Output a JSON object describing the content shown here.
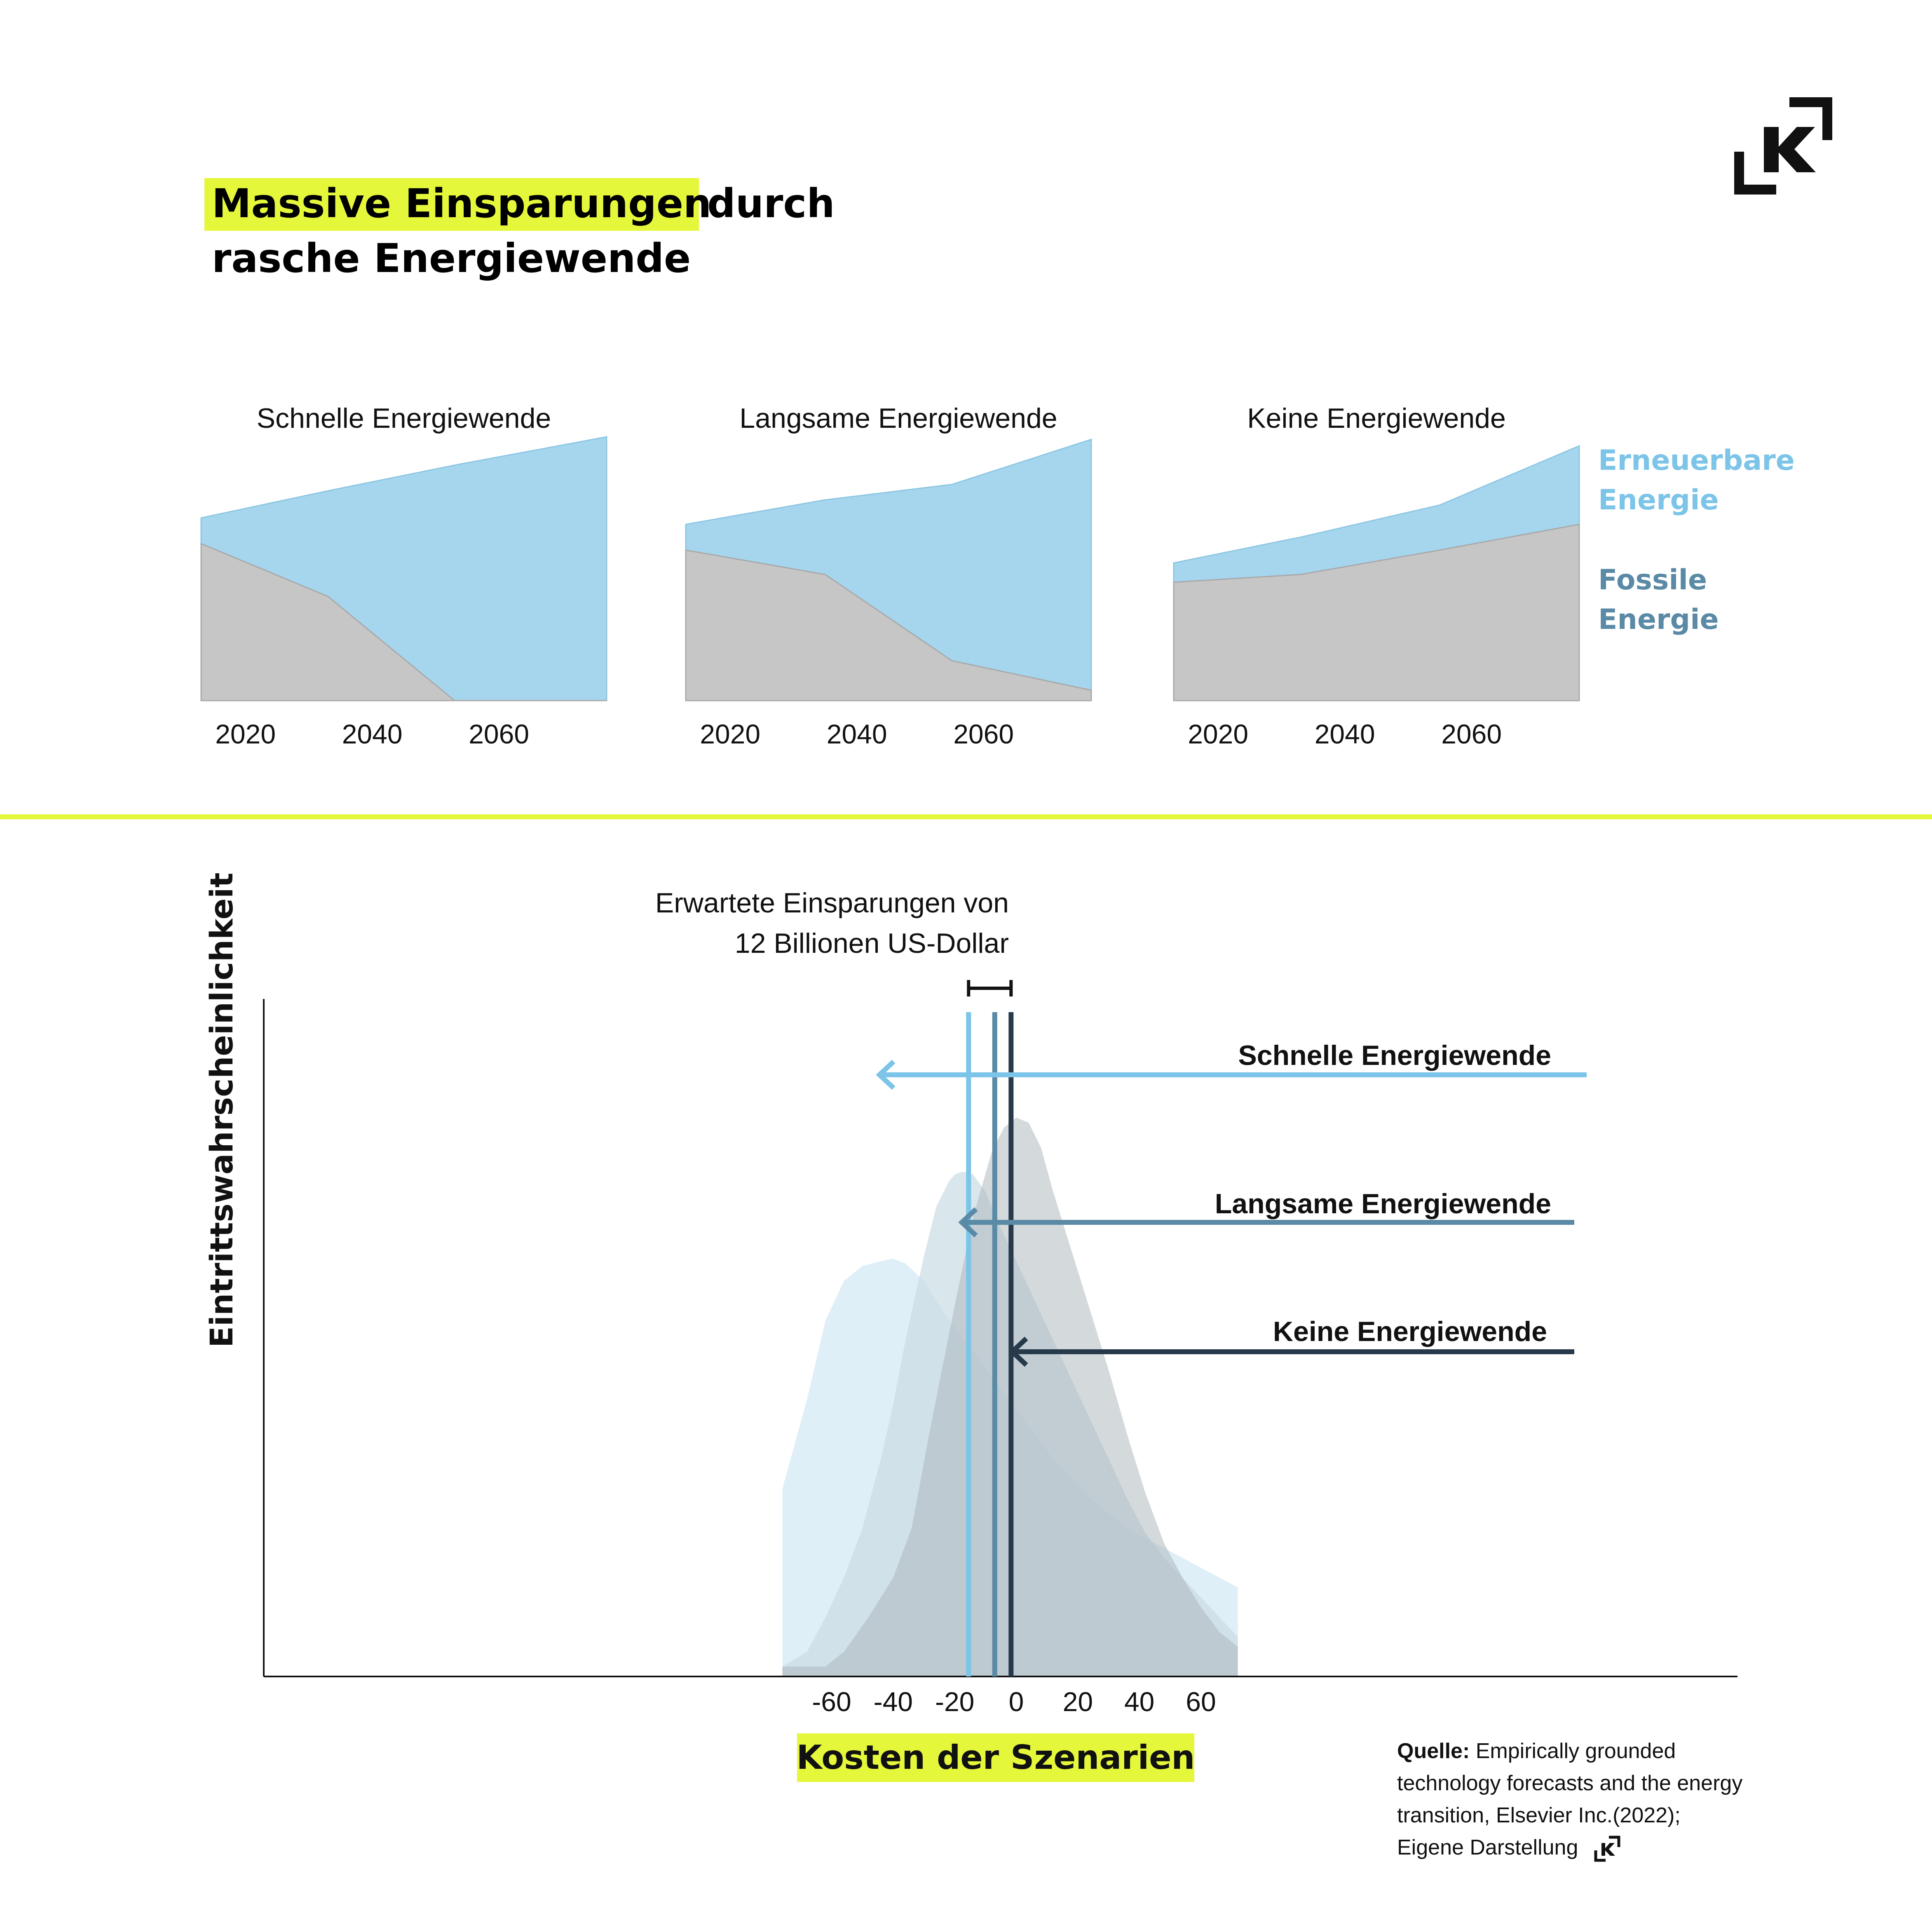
{
  "title": {
    "highlight": "Massive Einsparungen",
    "rest_line1": "durch",
    "line2": "rasche Energiewende"
  },
  "colors": {
    "highlight": "#e4f73a",
    "renewable": "#a6d6ee",
    "fossil": "#c6c6c6",
    "renewable_text": "#7cc4e8",
    "fossil_text": "#5a8aa6",
    "schnell": "#7cc4e8",
    "langsam": "#5a8aa6",
    "keine": "#263a4b",
    "divider": "#e4f73a"
  },
  "legend": {
    "renewable_line1": "Erneuerbare",
    "renewable_line2": "Energie",
    "fossil_line1": "Fossile",
    "fossil_line2": "Energie"
  },
  "annotation": {
    "line1": "Erwartete Einsparungen von",
    "line2": "12 Billionen US-Dollar"
  },
  "source": {
    "label": "Quelle:",
    "line1": "Empirically grounded",
    "line2": "technology forecasts and the energy",
    "line3": "transition, Elsevier Inc.(2022);",
    "line4": "Eigene Darstellung"
  },
  "logo": {
    "icon": "k-logo-icon"
  },
  "chart_data": [
    {
      "type": "area",
      "title": "Schnelle Energiewende",
      "x": [
        2013,
        2033,
        2053,
        2077
      ],
      "series": [
        {
          "name": "Fossile Energie",
          "values": [
            122,
            81,
            0,
            0
          ]
        },
        {
          "name": "Erneuerbare Energie",
          "values": [
            142,
            163,
            183,
            205
          ]
        }
      ],
      "x_ticks": [
        "2020",
        "2040",
        "2060"
      ],
      "tick_values": [
        2020,
        2040,
        2060
      ],
      "xlim": [
        2013,
        2077
      ],
      "ylim": [
        0,
        205
      ]
    },
    {
      "type": "area",
      "title": "Langsame Energiewende",
      "x": [
        2013,
        2035,
        2055,
        2077
      ],
      "series": [
        {
          "name": "Fossile Energie",
          "values": [
            117,
            98,
            31,
            8
          ]
        },
        {
          "name": "Erneuerbare Energie",
          "values": [
            137,
            156,
            168,
            203
          ]
        }
      ],
      "x_ticks": [
        "2020",
        "2040",
        "2060"
      ],
      "tick_values": [
        2020,
        2040,
        2060
      ],
      "xlim": [
        2013,
        2077
      ],
      "ylim": [
        0,
        205
      ]
    },
    {
      "type": "area",
      "title": "Keine Energiewende",
      "x": [
        2013,
        2033,
        2055,
        2077
      ],
      "series": [
        {
          "name": "Fossile Energie",
          "values": [
            92,
            98,
            117,
            137
          ]
        },
        {
          "name": "Erneuerbare Energie",
          "values": [
            107,
            127,
            152,
            198
          ]
        }
      ],
      "x_ticks": [
        "2020",
        "2040",
        "2060"
      ],
      "tick_values": [
        2020,
        2040,
        2060
      ],
      "xlim": [
        2013,
        2077
      ],
      "ylim": [
        0,
        205
      ]
    },
    {
      "type": "area",
      "title": "",
      "xlabel": "Kosten der Szenarien",
      "ylabel": "Eintrittswahrscheinlichkeit",
      "xlim": [
        -76,
        78
      ],
      "ylim": [
        0,
        1.2
      ],
      "x_ticks": [
        -60,
        -40,
        -20,
        0,
        20,
        40,
        60
      ],
      "series": [
        {
          "name": "Schnelle Energiewende",
          "x": [
            -76,
            -68,
            -62,
            -56,
            -50,
            -44,
            -40,
            -36,
            -30,
            -24,
            -18,
            -12,
            -6,
            0,
            6,
            12,
            18,
            24,
            30,
            36,
            42,
            48,
            54,
            60,
            66,
            72
          ],
          "values": [
            0.38,
            0.56,
            0.72,
            0.8,
            0.83,
            0.84,
            0.845,
            0.835,
            0.8,
            0.74,
            0.69,
            0.64,
            0.59,
            0.54,
            0.49,
            0.44,
            0.4,
            0.36,
            0.33,
            0.3,
            0.28,
            0.26,
            0.24,
            0.22,
            0.2,
            0.18
          ]
        },
        {
          "name": "Langsame Energiewende",
          "x": [
            -76,
            -68,
            -62,
            -56,
            -50,
            -44,
            -40,
            -36,
            -30,
            -26,
            -22,
            -20,
            -18,
            -16,
            -14,
            -10,
            -6,
            0,
            6,
            12,
            18,
            24,
            30,
            36,
            42,
            48,
            54,
            60,
            66,
            72
          ],
          "values": [
            0.02,
            0.05,
            0.12,
            0.2,
            0.3,
            0.44,
            0.55,
            0.68,
            0.85,
            0.95,
            1.0,
            1.015,
            1.02,
            1.02,
            1.015,
            0.98,
            0.92,
            0.84,
            0.76,
            0.68,
            0.6,
            0.52,
            0.44,
            0.36,
            0.29,
            0.24,
            0.2,
            0.16,
            0.12,
            0.08
          ]
        },
        {
          "name": "Keine Energiewende",
          "x": [
            -76,
            -62,
            -56,
            -48,
            -40,
            -34,
            -28,
            -20,
            -14,
            -8,
            -4,
            0,
            4,
            8,
            12,
            18,
            24,
            30,
            36,
            42,
            48,
            54,
            60,
            66,
            72
          ],
          "values": [
            0.02,
            0.02,
            0.05,
            0.12,
            0.2,
            0.3,
            0.5,
            0.75,
            0.93,
            1.06,
            1.11,
            1.13,
            1.12,
            1.07,
            0.98,
            0.86,
            0.74,
            0.62,
            0.49,
            0.37,
            0.27,
            0.2,
            0.14,
            0.09,
            0.06
          ]
        }
      ],
      "means": [
        {
          "name": "Schnelle Energiewende",
          "value": -15.5
        },
        {
          "name": "Langsame Energiewende",
          "value": -7
        },
        {
          "name": "Keine Energiewende",
          "value": -1.7
        }
      ],
      "bracket": [
        -15.5,
        -1.7
      ]
    }
  ]
}
